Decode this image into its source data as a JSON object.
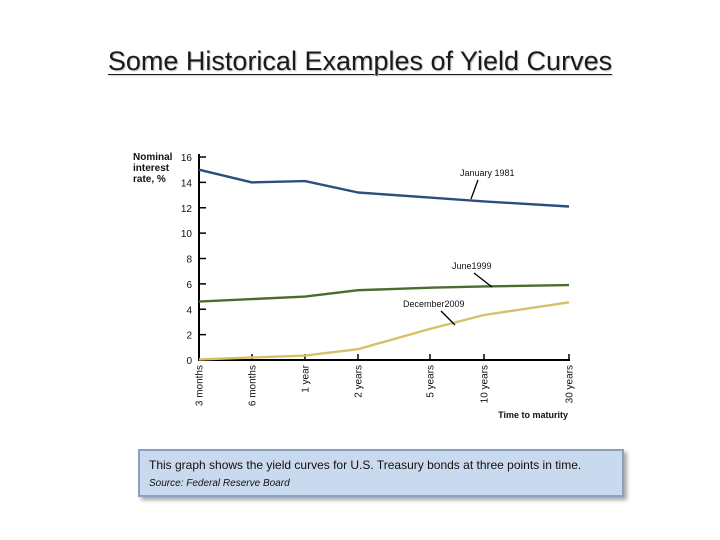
{
  "slide": {
    "title": "Some Historical Examples of Yield Curves",
    "caption": "This graph shows the yield curves for U.S. Treasury bonds at three points in time.",
    "source": "Source: Federal Reserve Board"
  },
  "chart_data": {
    "type": "line",
    "title": "",
    "xlabel": "Time to maturity",
    "ylabel": "Nominal interest rate, %",
    "ylim": [
      0,
      16
    ],
    "yticks": [
      0,
      2,
      4,
      6,
      8,
      10,
      12,
      14,
      16
    ],
    "categories": [
      "3 months",
      "6 months",
      "1 year",
      "2 years",
      "5 years",
      "10 years",
      "30 years"
    ],
    "grid": false,
    "legend": "inline labels",
    "series": [
      {
        "name": "January 1981",
        "color": "#2a4f7f",
        "values": [
          15.0,
          14.0,
          14.1,
          13.2,
          12.8,
          12.5,
          12.1
        ]
      },
      {
        "name": "June1999",
        "color": "#4e6b2f",
        "values": [
          4.6,
          4.8,
          5.0,
          5.5,
          5.7,
          5.8,
          5.9
        ]
      },
      {
        "name": "December2009",
        "color": "#d8c06a",
        "values": [
          0.05,
          0.2,
          0.35,
          0.85,
          2.45,
          3.55,
          4.55
        ]
      }
    ]
  }
}
